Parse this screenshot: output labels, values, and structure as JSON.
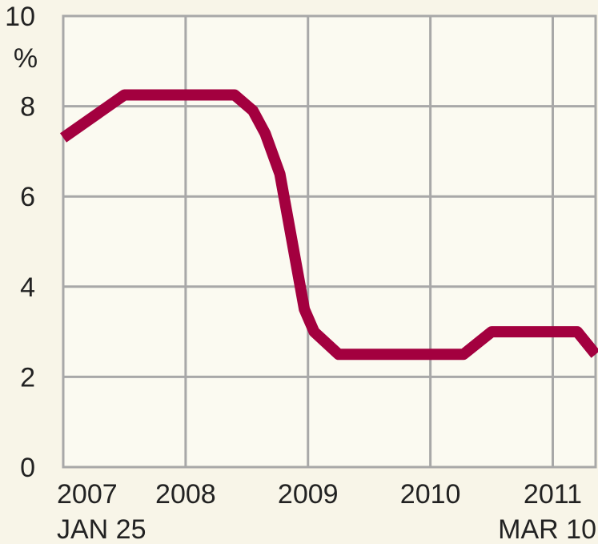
{
  "chart_data": {
    "type": "line",
    "title": "",
    "xlabel": "",
    "ylabel": "%",
    "ylim": [
      0,
      10
    ],
    "xlim": [
      2007.0,
      2011.35
    ],
    "yticks": [
      "0",
      "2",
      "4",
      "6",
      "8",
      "10"
    ],
    "xticks": [
      "2007",
      "2008",
      "2009",
      "2010",
      "2011"
    ],
    "x_start_label": "JAN 25",
    "x_end_label": "MAR 10",
    "grid": true,
    "series": [
      {
        "color": "#a3003f",
        "points": [
          [
            2007.0,
            7.3
          ],
          [
            2007.5,
            8.25
          ],
          [
            2008.4,
            8.25
          ],
          [
            2008.55,
            7.9
          ],
          [
            2008.65,
            7.4
          ],
          [
            2008.77,
            6.5
          ],
          [
            2008.97,
            3.5
          ],
          [
            2009.05,
            3.0
          ],
          [
            2009.25,
            2.5
          ],
          [
            2010.27,
            2.5
          ],
          [
            2010.5,
            3.0
          ],
          [
            2010.87,
            3.0
          ],
          [
            2011.2,
            3.0
          ],
          [
            2011.35,
            2.5
          ]
        ]
      }
    ]
  }
}
